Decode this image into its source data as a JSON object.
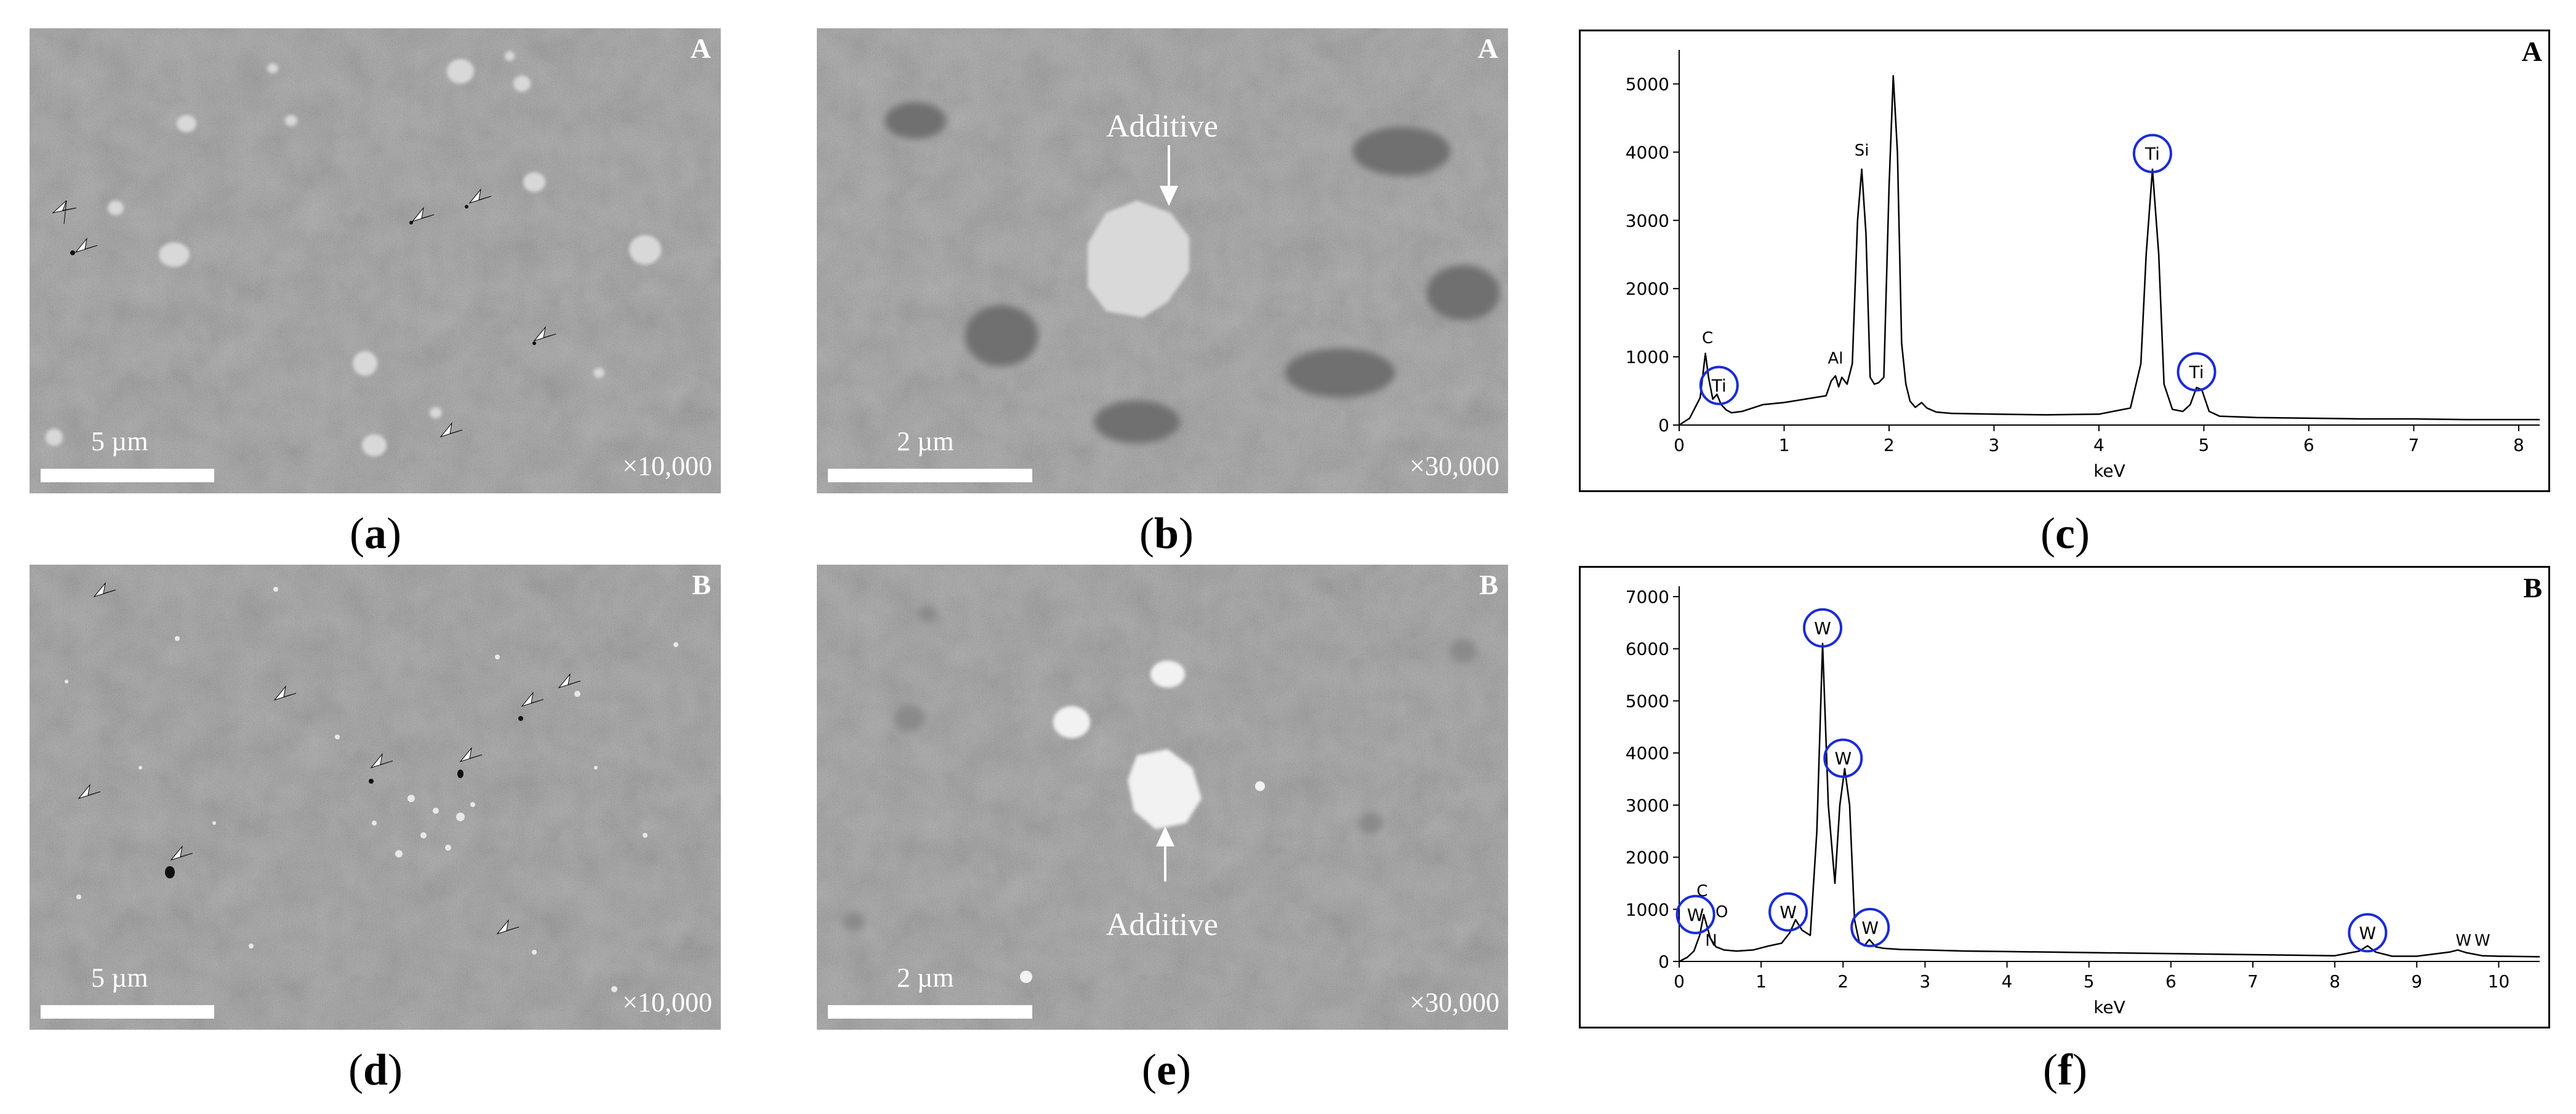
{
  "panels": {
    "a": {
      "label_open": "(",
      "label_letter": "a",
      "label_close": ")",
      "sample": "A",
      "scale": "5 µm",
      "magnification": "×10,000"
    },
    "b": {
      "label_open": "(",
      "label_letter": "b",
      "label_close": ")",
      "sample": "A",
      "scale": "2 µm",
      "magnification": "×30,000",
      "annotation": "Additive"
    },
    "c": {
      "label_open": "(",
      "label_letter": "c",
      "label_close": ")",
      "sample": "A"
    },
    "d": {
      "label_open": "(",
      "label_letter": "d",
      "label_close": ")",
      "sample": "B",
      "scale": "5 µm",
      "magnification": "×10,000"
    },
    "e": {
      "label_open": "(",
      "label_letter": "e",
      "label_close": ")",
      "sample": "B",
      "scale": "2 µm",
      "magnification": "×30,000",
      "annotation": "Additive"
    },
    "f": {
      "label_open": "(",
      "label_letter": "f",
      "label_close": ")",
      "sample": "B"
    }
  },
  "colors": {
    "sem_bg": "#5a5a5a",
    "circle": "#1a2bd6",
    "curve": "#000000"
  },
  "chart_data": [
    {
      "type": "line",
      "panel": "c",
      "xlabel": "keV",
      "ylabel": "",
      "xlim": [
        0,
        8.2
      ],
      "ylim": [
        0,
        5500
      ],
      "xticks": [
        0,
        1,
        2,
        3,
        4,
        5,
        6,
        7,
        8
      ],
      "yticks": [
        0,
        1000,
        2000,
        3000,
        4000,
        5000
      ],
      "series": [
        {
          "x": [
            0,
            0.1,
            0.2,
            0.25,
            0.28,
            0.32,
            0.36,
            0.4,
            0.45,
            0.5,
            0.6,
            0.8,
            1.0,
            1.2,
            1.4,
            1.45,
            1.49,
            1.52,
            1.55,
            1.6,
            1.65,
            1.7,
            1.74,
            1.78,
            1.82,
            1.86,
            1.9,
            1.95,
            2.0,
            2.04,
            2.08,
            2.12,
            2.16,
            2.2,
            2.25,
            2.31,
            2.36,
            2.45,
            2.6,
            3.0,
            3.5,
            4.0,
            4.3,
            4.4,
            4.45,
            4.51,
            4.57,
            4.62,
            4.7,
            4.8,
            4.87,
            4.93,
            4.98,
            5.05,
            5.15,
            5.5,
            6.0,
            6.5,
            7.0,
            7.5,
            8.0,
            8.2
          ],
          "y": [
            0,
            100,
            400,
            1050,
            700,
            380,
            450,
            300,
            220,
            180,
            200,
            300,
            330,
            380,
            430,
            650,
            720,
            560,
            700,
            600,
            900,
            3000,
            3750,
            2800,
            700,
            600,
            620,
            700,
            3500,
            5120,
            4000,
            1200,
            600,
            350,
            260,
            330,
            250,
            190,
            170,
            160,
            150,
            160,
            250,
            900,
            2500,
            3750,
            2500,
            600,
            230,
            200,
            300,
            550,
            520,
            200,
            130,
            110,
            100,
            90,
            90,
            80,
            80,
            80
          ]
        }
      ],
      "peak_labels": [
        {
          "text": "C",
          "x": 0.27,
          "y": 1200
        },
        {
          "text": "Si",
          "x": 1.74,
          "y": 3950
        },
        {
          "text": "Al",
          "x": 1.49,
          "y": 900
        }
      ],
      "circled_labels": [
        {
          "text": "Ti",
          "x": 0.38,
          "y": 580
        },
        {
          "text": "Ti",
          "x": 4.51,
          "y": 3980
        },
        {
          "text": "Ti",
          "x": 4.93,
          "y": 780
        }
      ]
    },
    {
      "type": "line",
      "panel": "f",
      "xlabel": "keV",
      "ylabel": "",
      "xlim": [
        0,
        10.5
      ],
      "ylim": [
        0,
        7200
      ],
      "xticks": [
        0,
        1,
        2,
        3,
        4,
        5,
        6,
        7,
        8,
        9,
        10
      ],
      "yticks": [
        0,
        1000,
        2000,
        3000,
        4000,
        5000,
        6000,
        7000
      ],
      "series": [
        {
          "x": [
            0,
            0.1,
            0.18,
            0.25,
            0.3,
            0.38,
            0.45,
            0.55,
            0.7,
            0.9,
            1.1,
            1.25,
            1.35,
            1.42,
            1.5,
            1.6,
            1.68,
            1.75,
            1.82,
            1.9,
            1.96,
            2.02,
            2.08,
            2.14,
            2.2,
            2.26,
            2.32,
            2.4,
            2.5,
            2.7,
            3.0,
            3.5,
            4.0,
            5.0,
            6.0,
            7.0,
            8.0,
            8.3,
            8.4,
            8.5,
            8.7,
            9.0,
            9.4,
            9.5,
            9.6,
            9.8,
            10.0,
            10.5
          ],
          "y": [
            0,
            80,
            200,
            500,
            900,
            450,
            280,
            220,
            200,
            220,
            300,
            350,
            550,
            800,
            600,
            500,
            2500,
            6100,
            3000,
            1500,
            3000,
            3700,
            3000,
            800,
            350,
            300,
            420,
            280,
            250,
            230,
            220,
            200,
            190,
            170,
            150,
            130,
            110,
            200,
            300,
            180,
            100,
            100,
            180,
            220,
            170,
            110,
            100,
            90
          ]
        }
      ],
      "peak_labels": [
        {
          "text": "C",
          "x": 0.28,
          "y": 1250
        },
        {
          "text": "O",
          "x": 0.52,
          "y": 850
        },
        {
          "text": "N",
          "x": 0.39,
          "y": 300
        },
        {
          "text": "W",
          "x": 9.57,
          "y": 300
        },
        {
          "text": "W",
          "x": 9.8,
          "y": 300
        }
      ],
      "circled_labels": [
        {
          "text": "W",
          "x": 0.2,
          "y": 900
        },
        {
          "text": "W",
          "x": 1.33,
          "y": 950
        },
        {
          "text": "W",
          "x": 1.75,
          "y": 6400
        },
        {
          "text": "W",
          "x": 2.0,
          "y": 3900
        },
        {
          "text": "W",
          "x": 2.33,
          "y": 650
        },
        {
          "text": "W",
          "x": 8.4,
          "y": 550
        }
      ]
    }
  ]
}
